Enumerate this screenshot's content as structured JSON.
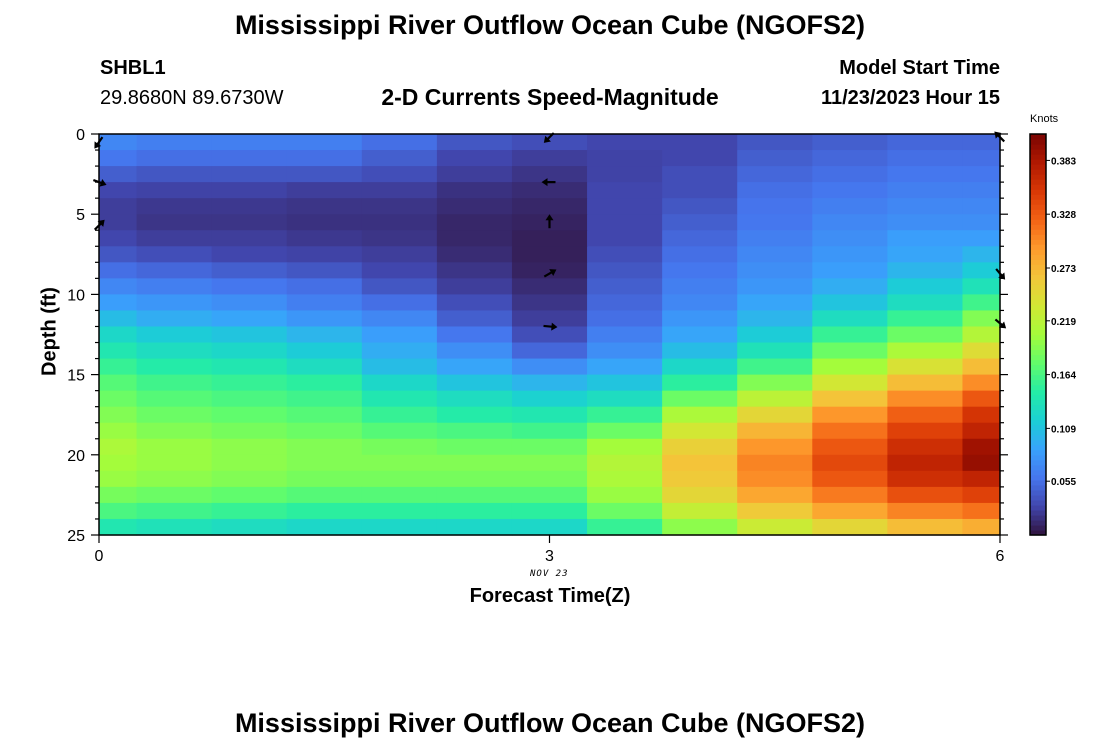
{
  "header": {
    "title": "Mississippi River Outflow Ocean Cube (NGOFS2)",
    "station": "SHBL1",
    "coordinates": "29.8680N  89.6730W",
    "model_start_label": "Model Start Time",
    "model_start_value": "11/23/2023 Hour 15"
  },
  "footer": {
    "title": "Mississippi River Outflow Ocean Cube (NGOFS2)"
  },
  "chart_data": {
    "type": "heatmap",
    "title": "2-D Currents Speed-Magnitude",
    "xlabel": "Forecast Time(Z)",
    "ylabel": "Depth (ft)",
    "date_label": "NOV 23",
    "xlim": [
      0,
      6
    ],
    "ylim": [
      25,
      0
    ],
    "x_ticks": [
      "0",
      "3",
      "6"
    ],
    "y_ticks": [
      "0",
      "5",
      "10",
      "15",
      "20",
      "25"
    ],
    "x_centers": [
      0,
      0.5,
      1,
      1.5,
      2,
      2.5,
      3,
      3.5,
      4,
      4.5,
      5,
      5.5,
      6
    ],
    "depth_centers": [
      0.5,
      1.5,
      2.5,
      3.5,
      4.5,
      5.5,
      6.5,
      7.5,
      8.5,
      9.5,
      10.5,
      11.5,
      12.5,
      13.5,
      14.5,
      15.5,
      16.5,
      17.5,
      18.5,
      19.5,
      20.5,
      21.5,
      22.5,
      23.5,
      24.5
    ],
    "values_knots": [
      [
        0.07,
        0.065,
        0.065,
        0.065,
        0.055,
        0.04,
        0.035,
        0.03,
        0.03,
        0.04,
        0.045,
        0.05,
        0.05
      ],
      [
        0.06,
        0.055,
        0.055,
        0.055,
        0.045,
        0.03,
        0.025,
        0.028,
        0.03,
        0.045,
        0.05,
        0.055,
        0.055
      ],
      [
        0.045,
        0.04,
        0.04,
        0.04,
        0.035,
        0.025,
        0.02,
        0.028,
        0.035,
        0.05,
        0.055,
        0.06,
        0.06
      ],
      [
        0.03,
        0.028,
        0.028,
        0.025,
        0.025,
        0.018,
        0.015,
        0.03,
        0.035,
        0.055,
        0.06,
        0.065,
        0.065
      ],
      [
        0.025,
        0.022,
        0.022,
        0.02,
        0.02,
        0.015,
        0.012,
        0.03,
        0.04,
        0.058,
        0.065,
        0.07,
        0.07
      ],
      [
        0.025,
        0.02,
        0.02,
        0.018,
        0.018,
        0.012,
        0.01,
        0.03,
        0.045,
        0.06,
        0.07,
        0.075,
        0.075
      ],
      [
        0.03,
        0.025,
        0.025,
        0.022,
        0.02,
        0.012,
        0.008,
        0.03,
        0.05,
        0.065,
        0.075,
        0.085,
        0.085
      ],
      [
        0.04,
        0.035,
        0.03,
        0.028,
        0.025,
        0.015,
        0.008,
        0.035,
        0.055,
        0.07,
        0.08,
        0.09,
        0.1
      ],
      [
        0.055,
        0.05,
        0.045,
        0.04,
        0.03,
        0.02,
        0.01,
        0.04,
        0.06,
        0.075,
        0.085,
        0.1,
        0.115
      ],
      [
        0.07,
        0.065,
        0.06,
        0.055,
        0.04,
        0.025,
        0.015,
        0.045,
        0.065,
        0.08,
        0.095,
        0.115,
        0.135
      ],
      [
        0.085,
        0.08,
        0.075,
        0.065,
        0.055,
        0.035,
        0.02,
        0.05,
        0.07,
        0.09,
        0.11,
        0.13,
        0.16
      ],
      [
        0.105,
        0.095,
        0.09,
        0.08,
        0.07,
        0.045,
        0.025,
        0.055,
        0.08,
        0.1,
        0.13,
        0.155,
        0.19
      ],
      [
        0.125,
        0.115,
        0.11,
        0.1,
        0.085,
        0.06,
        0.035,
        0.065,
        0.09,
        0.115,
        0.155,
        0.18,
        0.215
      ],
      [
        0.14,
        0.13,
        0.125,
        0.115,
        0.095,
        0.075,
        0.05,
        0.075,
        0.105,
        0.135,
        0.18,
        0.21,
        0.245
      ],
      [
        0.155,
        0.145,
        0.14,
        0.13,
        0.105,
        0.09,
        0.075,
        0.09,
        0.125,
        0.16,
        0.205,
        0.24,
        0.27
      ],
      [
        0.17,
        0.16,
        0.155,
        0.15,
        0.125,
        0.11,
        0.1,
        0.11,
        0.15,
        0.19,
        0.235,
        0.27,
        0.3
      ],
      [
        0.18,
        0.17,
        0.165,
        0.16,
        0.14,
        0.13,
        0.12,
        0.13,
        0.18,
        0.22,
        0.265,
        0.3,
        0.33
      ],
      [
        0.19,
        0.18,
        0.175,
        0.17,
        0.155,
        0.145,
        0.14,
        0.155,
        0.21,
        0.25,
        0.295,
        0.325,
        0.355
      ],
      [
        0.2,
        0.19,
        0.185,
        0.18,
        0.17,
        0.165,
        0.16,
        0.18,
        0.235,
        0.275,
        0.315,
        0.345,
        0.37
      ],
      [
        0.21,
        0.2,
        0.195,
        0.19,
        0.185,
        0.18,
        0.18,
        0.205,
        0.255,
        0.295,
        0.33,
        0.36,
        0.39
      ],
      [
        0.205,
        0.2,
        0.195,
        0.19,
        0.19,
        0.19,
        0.19,
        0.215,
        0.265,
        0.305,
        0.34,
        0.37,
        0.395
      ],
      [
        0.2,
        0.195,
        0.19,
        0.185,
        0.185,
        0.185,
        0.185,
        0.21,
        0.26,
        0.3,
        0.33,
        0.36,
        0.37
      ],
      [
        0.185,
        0.18,
        0.175,
        0.17,
        0.17,
        0.17,
        0.17,
        0.2,
        0.25,
        0.285,
        0.31,
        0.335,
        0.345
      ],
      [
        0.165,
        0.16,
        0.155,
        0.15,
        0.15,
        0.15,
        0.15,
        0.18,
        0.225,
        0.26,
        0.285,
        0.305,
        0.315
      ],
      [
        0.14,
        0.135,
        0.13,
        0.125,
        0.125,
        0.125,
        0.125,
        0.155,
        0.195,
        0.23,
        0.25,
        0.27,
        0.28
      ]
    ],
    "vectors": [
      {
        "x": 0,
        "depth": 0.5,
        "angle_deg": 125
      },
      {
        "x": 0,
        "depth": 3.0,
        "angle_deg": 20
      },
      {
        "x": 0,
        "depth": 5.7,
        "angle_deg": -45
      },
      {
        "x": 3,
        "depth": 0.2,
        "angle_deg": 135
      },
      {
        "x": 3,
        "depth": 3.0,
        "angle_deg": 180
      },
      {
        "x": 3,
        "depth": 5.5,
        "angle_deg": -90
      },
      {
        "x": 3,
        "depth": 8.7,
        "angle_deg": -30
      },
      {
        "x": 3,
        "depth": 12.0,
        "angle_deg": 5
      },
      {
        "x": 6,
        "depth": 0.2,
        "angle_deg": 225
      },
      {
        "x": 6,
        "depth": 8.7,
        "angle_deg": 50
      },
      {
        "x": 6,
        "depth": 11.8,
        "angle_deg": 40
      }
    ],
    "colorbar": {
      "label": "Knots",
      "range": [
        0,
        0.41
      ],
      "ticks": [
        "0.383",
        "0.328",
        "0.273",
        "0.219",
        "0.164",
        "0.109",
        "0.055"
      ],
      "tick_values": [
        0.383,
        0.328,
        0.273,
        0.219,
        0.164,
        0.109,
        0.055
      ],
      "colormap": [
        "#30123b",
        "#4145ab",
        "#4675ed",
        "#39a2fc",
        "#1bcfd4",
        "#24eca6",
        "#61fc6c",
        "#a4fc3b",
        "#d1e834",
        "#f3c63a",
        "#fe9b2d",
        "#f36315",
        "#d93806",
        "#b11901",
        "#7a0402"
      ]
    }
  }
}
